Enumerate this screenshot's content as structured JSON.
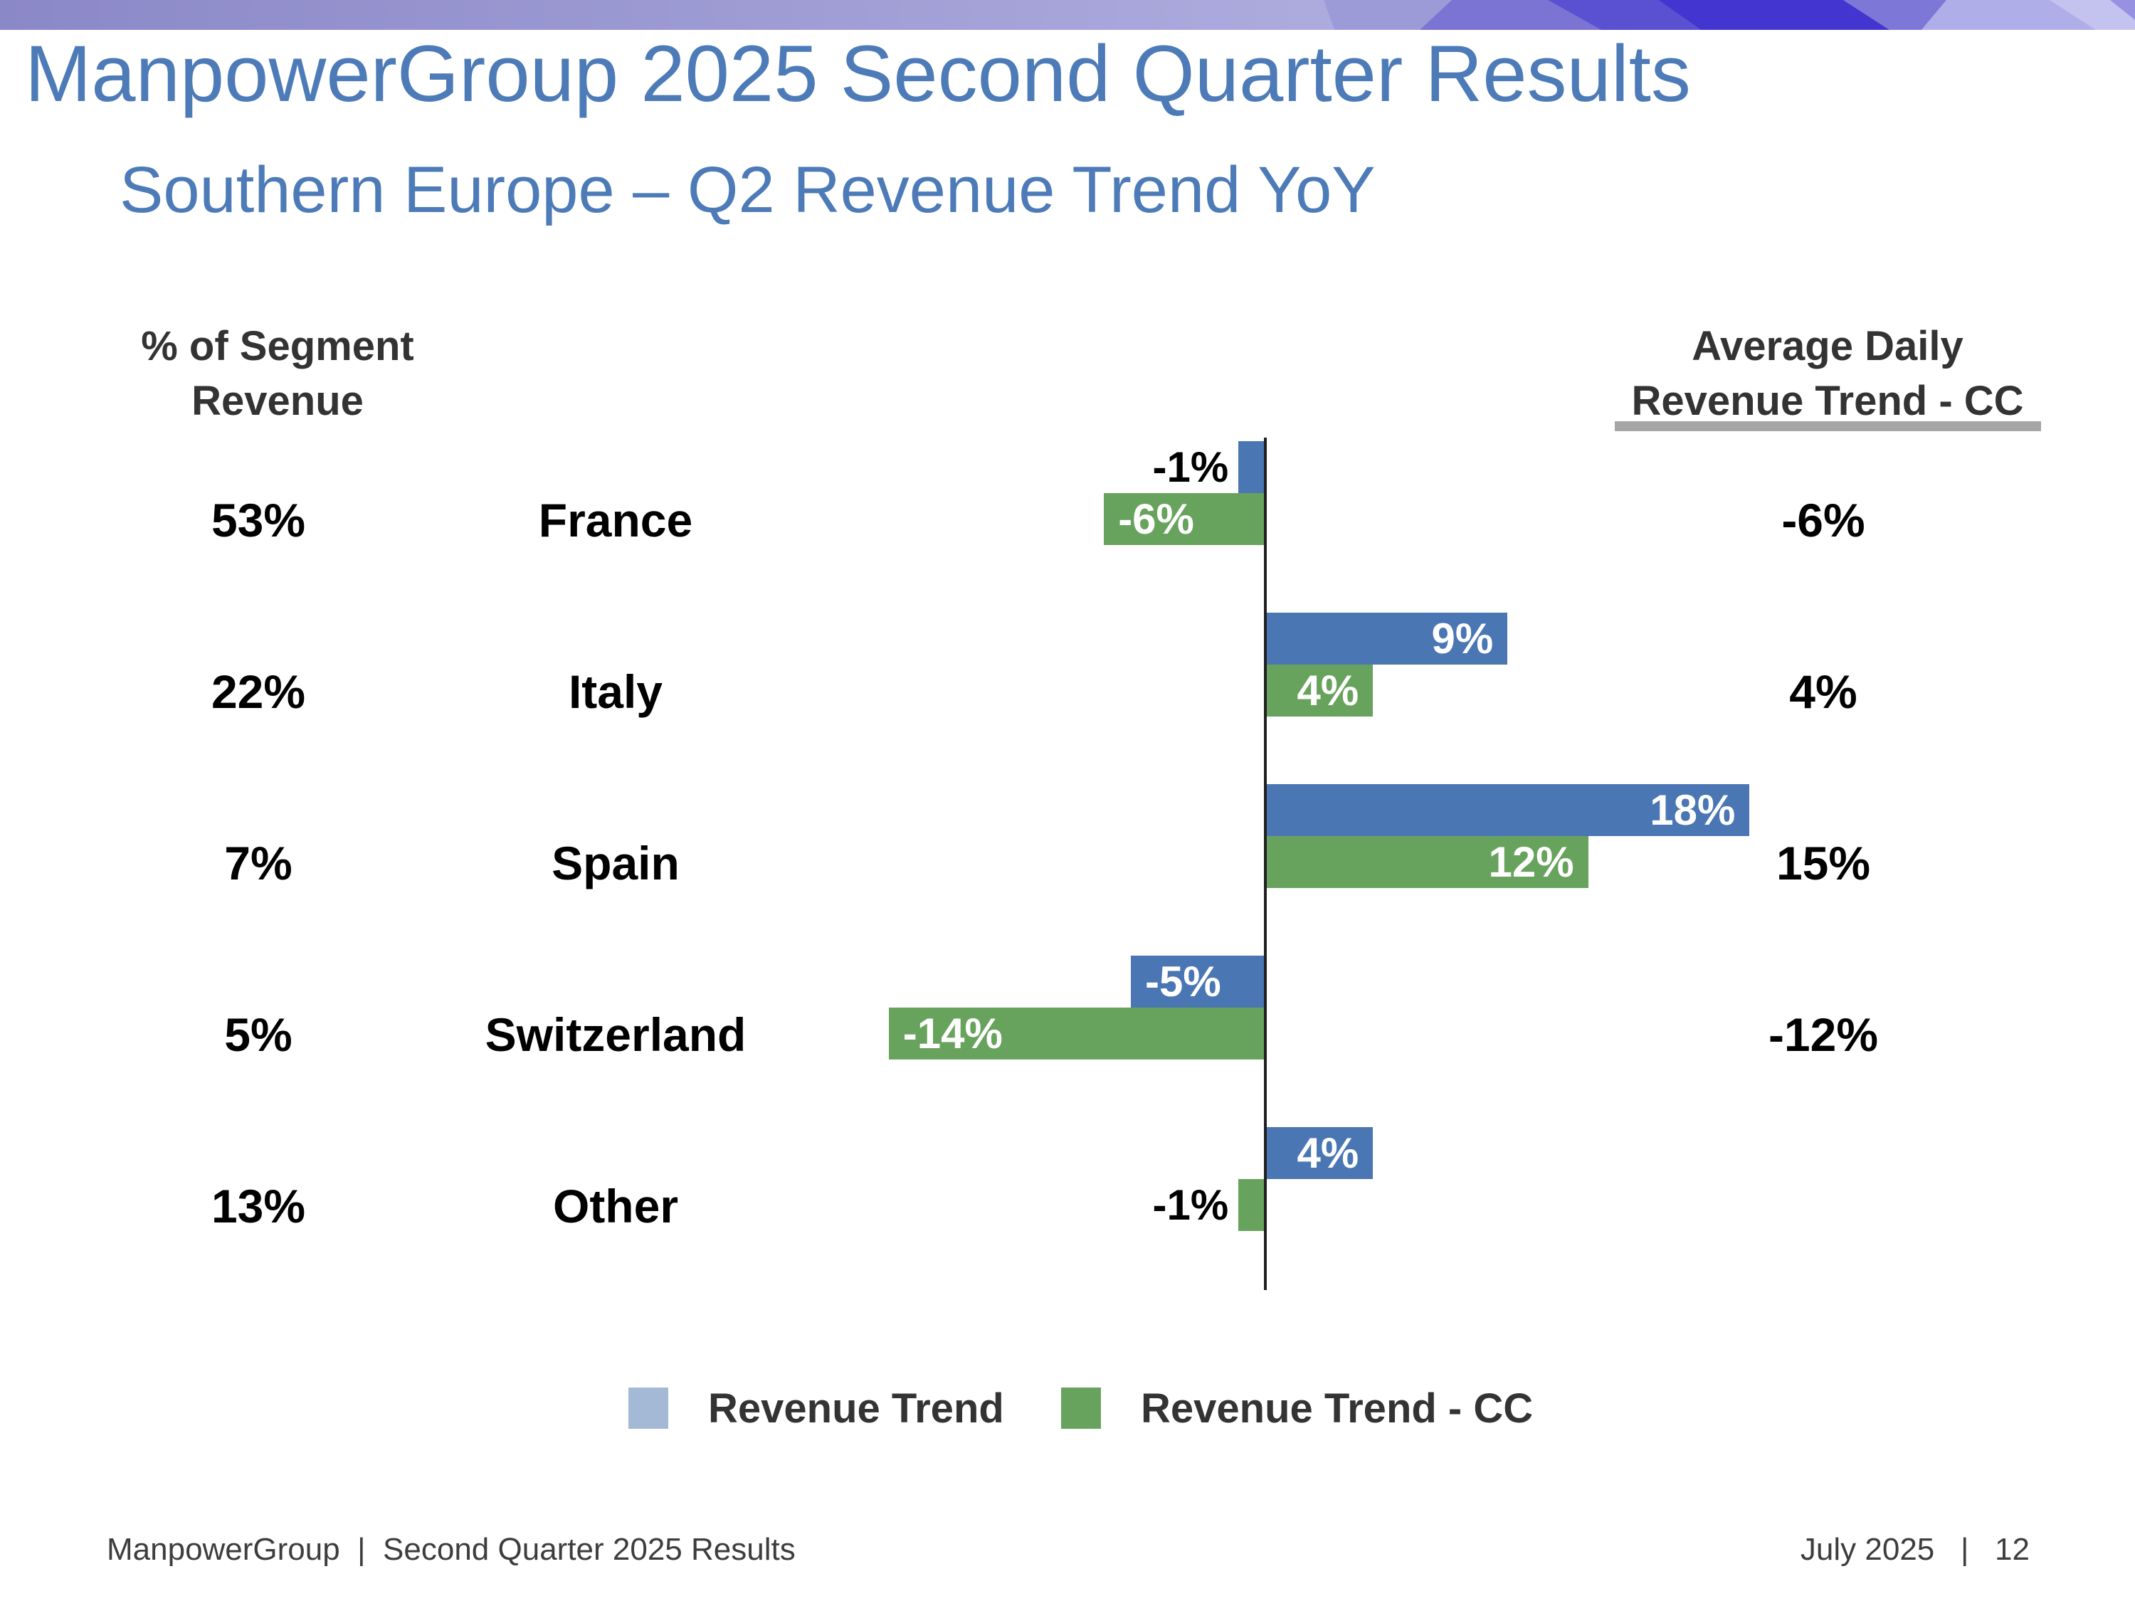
{
  "header": {
    "title": "ManpowerGroup 2025 Second Quarter Results",
    "subtitle": "Southern Europe – Q2 Revenue Trend YoY"
  },
  "col_headers": {
    "segment_line1": "% of Segment",
    "segment_line2": "Revenue",
    "avg_line1": "Average Daily",
    "avg_line2": "Revenue Trend - CC"
  },
  "chart_data": {
    "type": "bar",
    "orientation": "horizontal",
    "title": "Southern Europe – Q2 Revenue Trend YoY",
    "xlabel": "",
    "ylabel": "",
    "xlim": [
      -16,
      20
    ],
    "grid": false,
    "legend_position": "bottom",
    "categories": [
      "France",
      "Italy",
      "Spain",
      "Switzerland",
      "Other"
    ],
    "series": [
      {
        "name": "Revenue Trend",
        "values": [
          -1,
          9,
          18,
          -5,
          4
        ]
      },
      {
        "name": "Revenue Trend - CC",
        "values": [
          -6,
          4,
          12,
          -14,
          -1
        ]
      }
    ],
    "segment_revenue_share": [
      "53%",
      "22%",
      "7%",
      "5%",
      "13%"
    ],
    "average_daily_revenue_trend_cc": [
      "-6%",
      "4%",
      "15%",
      "-12%",
      ""
    ],
    "rows": [
      {
        "segment_share": "53%",
        "country": "France",
        "revenue_trend": -1,
        "revenue_trend_label": "-1%",
        "revenue_trend_cc": -6,
        "revenue_trend_cc_label": "-6%",
        "avg_daily_cc": "-6%"
      },
      {
        "segment_share": "22%",
        "country": "Italy",
        "revenue_trend": 9,
        "revenue_trend_label": "9%",
        "revenue_trend_cc": 4,
        "revenue_trend_cc_label": "4%",
        "avg_daily_cc": "4%"
      },
      {
        "segment_share": "7%",
        "country": "Spain",
        "revenue_trend": 18,
        "revenue_trend_label": "18%",
        "revenue_trend_cc": 12,
        "revenue_trend_cc_label": "12%",
        "avg_daily_cc": "15%"
      },
      {
        "segment_share": "5%",
        "country": "Switzerland",
        "revenue_trend": -5,
        "revenue_trend_label": "-5%",
        "revenue_trend_cc": -14,
        "revenue_trend_cc_label": "-14%",
        "avg_daily_cc": "-12%"
      },
      {
        "segment_share": "13%",
        "country": "Other",
        "revenue_trend": 4,
        "revenue_trend_label": "4%",
        "revenue_trend_cc": -1,
        "revenue_trend_cc_label": "-1%",
        "avg_daily_cc": ""
      }
    ],
    "colors": {
      "revenue_trend": "#4a76b4",
      "revenue_trend_cc": "#68a35d",
      "legend_revenue_trend": "#a4b9d6",
      "title_blue": "#4d7bb8",
      "axis": "#202020",
      "underline_gray": "#a6a6a6"
    }
  },
  "legend": {
    "items": [
      {
        "label": "Revenue Trend"
      },
      {
        "label": "Revenue Trend - CC"
      }
    ]
  },
  "footer": {
    "left": "ManpowerGroup  |  Second Quarter 2025 Results",
    "right": "July 2025   |   12"
  }
}
